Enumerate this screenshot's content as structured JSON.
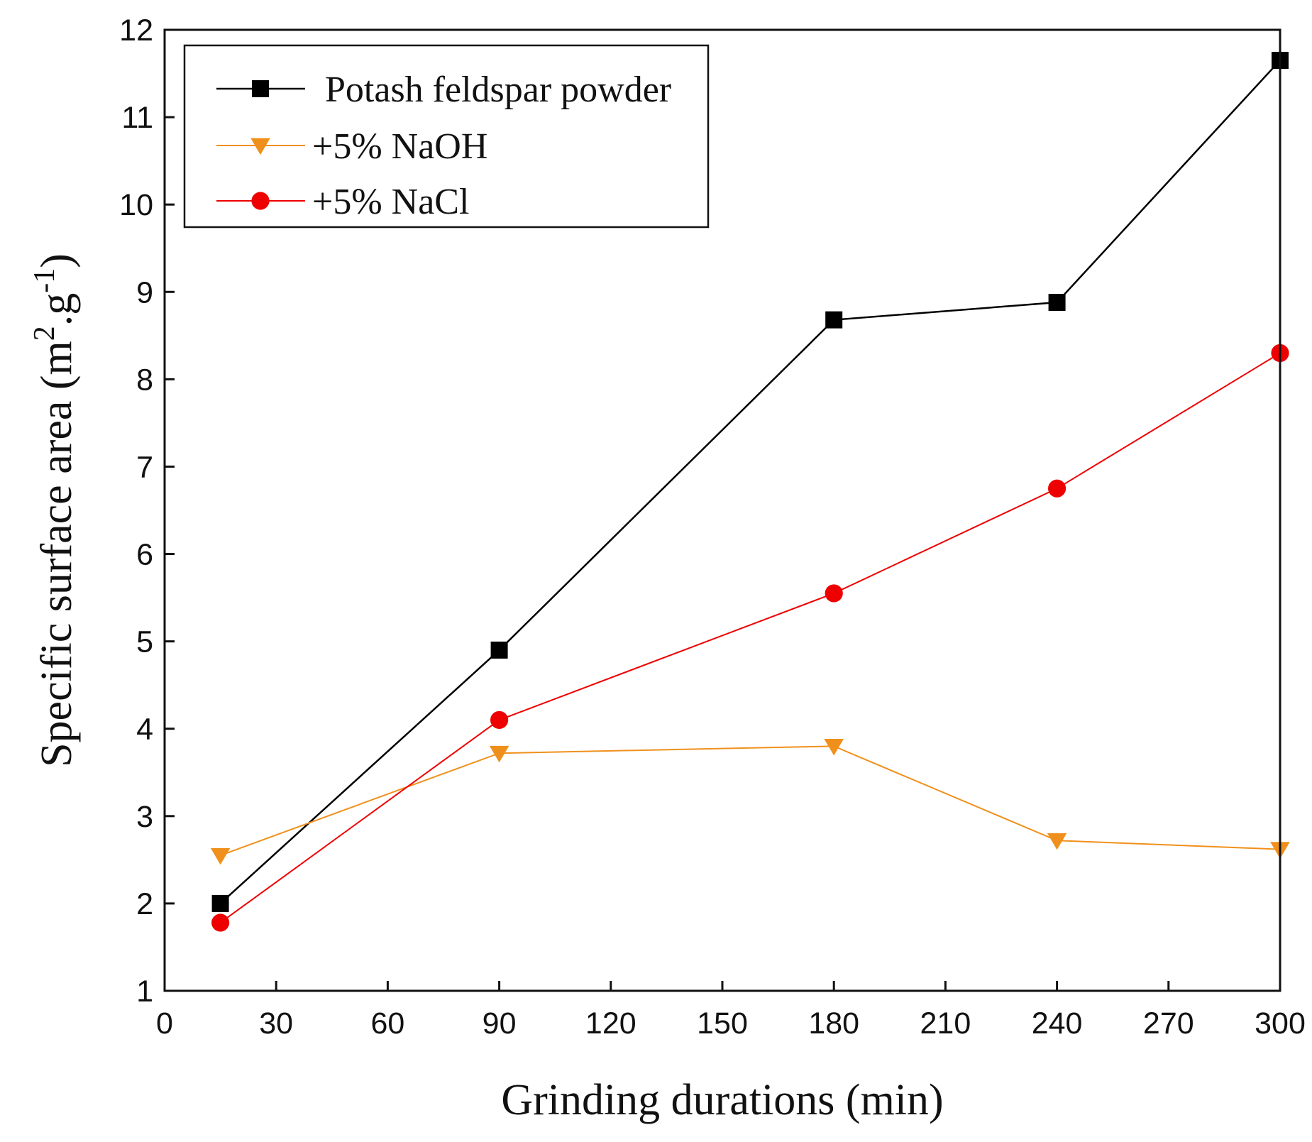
{
  "chart_data": {
    "type": "line",
    "title": "",
    "xlabel": "Grinding durations (min)",
    "ylabel": {
      "base": "Specific surface area (m",
      "sup1": "2",
      "mid": ".g",
      "sup2": "-1",
      "end": ")"
    },
    "xlim": [
      0,
      300
    ],
    "ylim": [
      1,
      12
    ],
    "xticks": [
      "0",
      "30",
      "60",
      "90",
      "120",
      "150",
      "180",
      "210",
      "240",
      "270",
      "300"
    ],
    "yticks": [
      "1",
      "2",
      "3",
      "4",
      "5",
      "6",
      "7",
      "8",
      "9",
      "10",
      "11",
      "12"
    ],
    "legend_position": "top-left",
    "series": [
      {
        "name": "Potash feldspar powder",
        "color": "#000000",
        "marker": "square",
        "x": [
          15,
          90,
          180,
          240,
          300
        ],
        "values": [
          2.0,
          4.9,
          8.68,
          8.88,
          11.65
        ]
      },
      {
        "name": "+5% NaOH",
        "color": "#f0901c",
        "marker": "triangle-down",
        "x": [
          15,
          90,
          180,
          240,
          300
        ],
        "values": [
          2.55,
          3.72,
          3.8,
          2.72,
          2.62
        ]
      },
      {
        "name": "+5% NaCl",
        "color": "#ee0000",
        "marker": "circle",
        "x": [
          15,
          90,
          180,
          240,
          300
        ],
        "values": [
          1.78,
          4.1,
          5.55,
          6.75,
          8.3
        ]
      }
    ]
  }
}
